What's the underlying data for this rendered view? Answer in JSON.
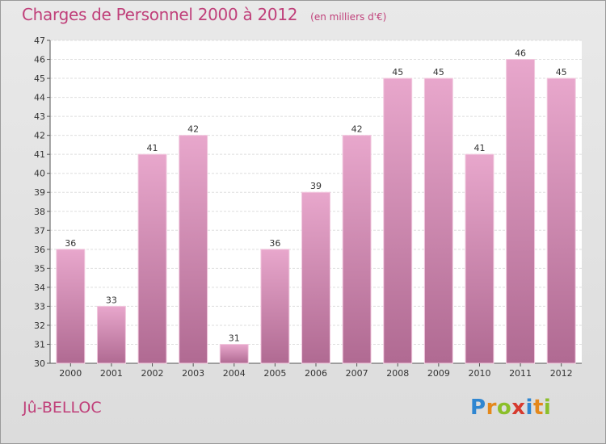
{
  "header": {
    "title": "Charges de Personnel 2000 à 2012",
    "subtitle": "(en milliers d'€)"
  },
  "footer": {
    "commune": "Jû-BELLOC",
    "brand": "Proxiti",
    "brand_letters": [
      {
        "ch": "P",
        "color": "#2f86d1"
      },
      {
        "ch": "r",
        "color": "#e4881b"
      },
      {
        "ch": "o",
        "color": "#8bbf2a"
      },
      {
        "ch": "x",
        "color": "#d63a2e"
      },
      {
        "ch": "i",
        "color": "#2f86d1"
      },
      {
        "ch": "t",
        "color": "#e4881b"
      },
      {
        "ch": "i",
        "color": "#8bbf2a"
      }
    ]
  },
  "colors": {
    "accent": "#c0407a",
    "bar_top": "#e8a7cc",
    "bar_bottom": "#b06a92",
    "plot_bg": "#ffffff",
    "grid": "#dddddd"
  },
  "chart_data": {
    "type": "bar",
    "categories": [
      "2000",
      "2001",
      "2002",
      "2003",
      "2004",
      "2005",
      "2006",
      "2007",
      "2008",
      "2009",
      "2010",
      "2011",
      "2012"
    ],
    "values": [
      36,
      33,
      41,
      42,
      31,
      36,
      39,
      42,
      45,
      45,
      41,
      46,
      45
    ],
    "title": "Charges de Personnel 2000 à 2012",
    "subtitle": "(en milliers d'€)",
    "xlabel": "",
    "ylabel": "",
    "ylim": [
      30,
      47
    ],
    "yticks": [
      30,
      31,
      32,
      33,
      34,
      35,
      36,
      37,
      38,
      39,
      40,
      41,
      42,
      43,
      44,
      45,
      46,
      47
    ],
    "grid": true,
    "data_labels": true
  }
}
